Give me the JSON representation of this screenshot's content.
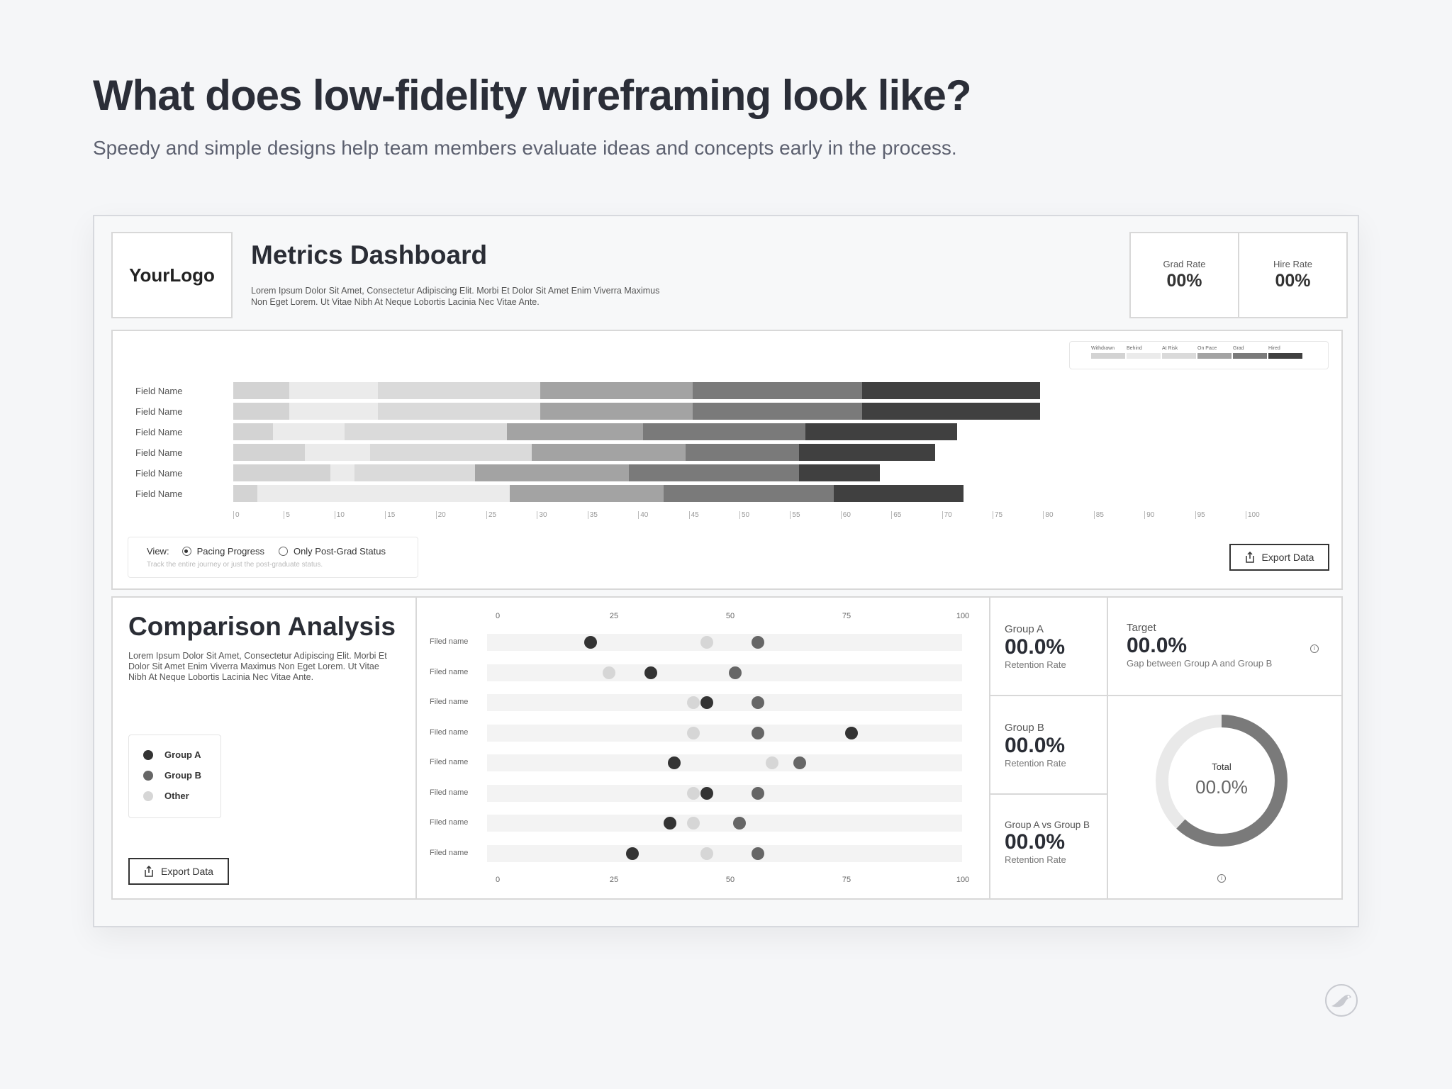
{
  "heading": {
    "title": "What does low-fidelity wireframing look like?",
    "subtitle": "Speedy and simple designs help team members evaluate ideas and concepts early in the process."
  },
  "dashboard": {
    "logo": "YourLogo",
    "title": "Metrics Dashboard",
    "description": "Lorem Ipsum Dolor Sit Amet, Consectetur Adipiscing Elit. Morbi Et Dolor Sit Amet Enim Viverra Maximus Non Eget Lorem. Ut Vitae Nibh At Neque Lobortis Lacinia Nec Vitae Ante.",
    "kpis": [
      {
        "label": "Grad Rate",
        "value": "00%"
      },
      {
        "label": "Hire Rate",
        "value": "00%"
      }
    ]
  },
  "stacked_bar": {
    "legend": [
      "Withdrawn",
      "Behind",
      "At Risk",
      "On Pace",
      "Grad",
      "Hired"
    ],
    "colors": [
      "#d3d3d3",
      "#ebebeb",
      "#dadada",
      "#a3a3a3",
      "#7a7a7a",
      "#404040"
    ],
    "rows": [
      {
        "label": "Field Name",
        "values": [
          5.5,
          8.8,
          16,
          15.1,
          16.7,
          17.6
        ]
      },
      {
        "label": "Field Name",
        "values": [
          5.5,
          8.8,
          16,
          15.1,
          16.7,
          17.6
        ]
      },
      {
        "label": "Field Name",
        "values": [
          3.9,
          7.1,
          16,
          13.5,
          16,
          15
        ]
      },
      {
        "label": "Field Name",
        "values": [
          7.1,
          6.4,
          16,
          15.2,
          11.2,
          13.4
        ]
      },
      {
        "label": "Field Name",
        "values": [
          9.6,
          2.4,
          11.9,
          15.2,
          16.8,
          8
        ]
      },
      {
        "label": "Field Name",
        "values": [
          2.4,
          24.9,
          0,
          15.2,
          16.8,
          12.8
        ]
      }
    ],
    "ticks": [
      "0",
      "5",
      "10",
      "15",
      "20",
      "25",
      "30",
      "35",
      "40",
      "45",
      "50",
      "55",
      "60",
      "65",
      "70",
      "75",
      "80",
      "85",
      "90",
      "95",
      "100"
    ],
    "view_label": "View:",
    "options": [
      "Pacing Progress",
      "Only Post-Grad Status"
    ],
    "selected_option": "Pacing Progress",
    "hint": "Track the entire journey or just the post-graduate status.",
    "export_label": "Export Data"
  },
  "comparison": {
    "title": "Comparison Analysis",
    "description": "Lorem Ipsum Dolor Sit Amet, Consectetur Adipiscing Elit. Morbi Et Dolor Sit Amet Enim Viverra Maximus Non Eget Lorem. Ut Vitae Nibh At Neque Lobortis Lacinia Nec Vitae Ante.",
    "legend": [
      {
        "name": "Group A",
        "color": "#333333"
      },
      {
        "name": "Group B",
        "color": "#666666"
      },
      {
        "name": "Other",
        "color": "#d6d6d6"
      }
    ],
    "export_label": "Export Data",
    "axis_ticks": [
      "0",
      "25",
      "50",
      "75",
      "100"
    ],
    "rows": [
      {
        "label": "Filed name",
        "a": 20,
        "b": 56,
        "other": 45
      },
      {
        "label": "Filed name",
        "a": 33,
        "b": 51,
        "other": 24
      },
      {
        "label": "Filed name",
        "a": 45,
        "b": 56,
        "other": 42
      },
      {
        "label": "Filed name",
        "a": 76,
        "b": 56,
        "other": 42
      },
      {
        "label": "Filed name",
        "a": 38,
        "b": 65,
        "other": 59
      },
      {
        "label": "Filed name",
        "a": 45,
        "b": 56,
        "other": 42
      },
      {
        "label": "Filed name",
        "a": 37,
        "b": 52,
        "other": 42
      },
      {
        "label": "Filed name",
        "a": 29,
        "b": 56,
        "other": 45
      }
    ],
    "stats": [
      {
        "label": "Group A",
        "value": "00.0%",
        "sub": "Retention Rate"
      },
      {
        "label": "Group B",
        "value": "00.0%",
        "sub": "Retention Rate"
      },
      {
        "label": "Group A vs Group B",
        "value": "00.0%",
        "sub": "Retention Rate"
      }
    ],
    "target": {
      "label": "Target",
      "value": "00.0%",
      "sub": "Gap between Group A and Group B"
    },
    "donut": {
      "label": "Total",
      "value": "00.0%",
      "fraction": 0.62,
      "color": "#7a7a7a",
      "track": "#e9e9e9"
    }
  }
}
